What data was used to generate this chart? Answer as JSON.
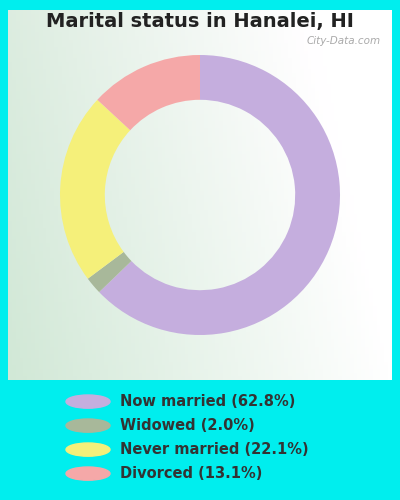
{
  "title": "Marital status in Hanalei, HI",
  "title_color": "#222222",
  "title_fontsize": 14,
  "outer_bg_color": "#00EEEE",
  "chart_panel_color_tl": "#e8f0e8",
  "chart_panel_color_br": "#d0e8d0",
  "segments": [
    {
      "label": "Now married (62.8%)",
      "value": 62.8,
      "color": "#c5aede"
    },
    {
      "label": "Widowed (2.0%)",
      "value": 2.0,
      "color": "#a8b89a"
    },
    {
      "label": "Never married (22.1%)",
      "value": 22.1,
      "color": "#f5f07a"
    },
    {
      "label": "Divorced (13.1%)",
      "value": 13.1,
      "color": "#f5a8a8"
    }
  ],
  "donut_width": 0.32,
  "legend_fontsize": 10.5,
  "legend_text_color": "#333333",
  "watermark": "City-Data.com",
  "watermark_color": "#aaaaaa"
}
